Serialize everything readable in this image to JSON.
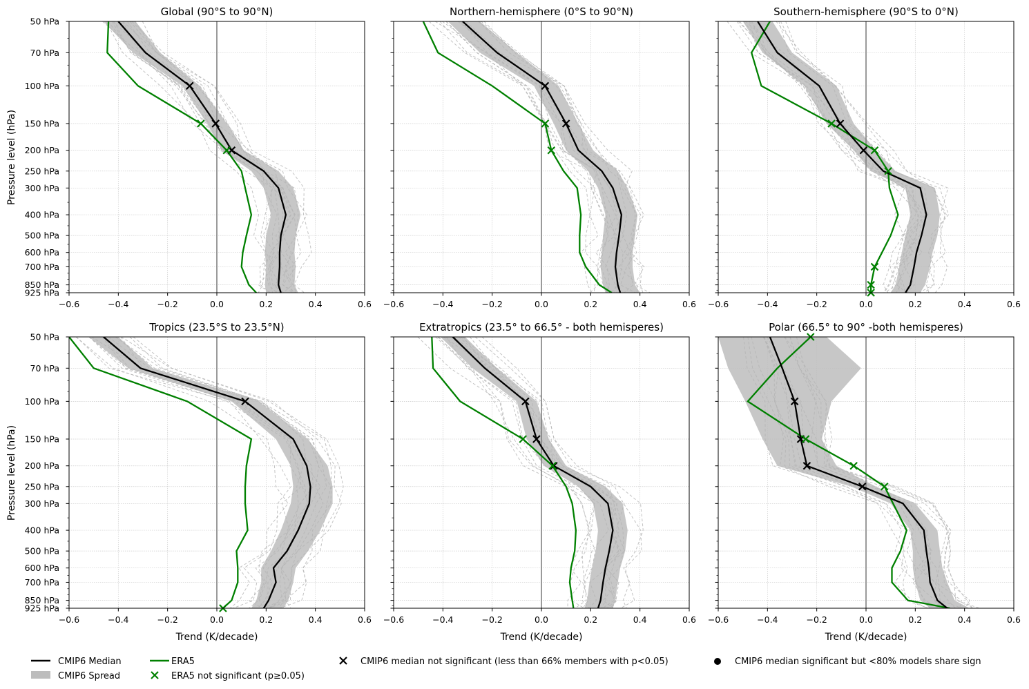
{
  "axis_labels": {
    "x": "Trend (K/decade)",
    "y": "Pressure level (hPa)"
  },
  "levels_hpa": [
    50,
    70,
    100,
    150,
    200,
    250,
    300,
    400,
    500,
    600,
    700,
    850,
    925
  ],
  "level_tick_labels": [
    "50 hPa",
    "70 hPa",
    "100 hPa",
    "150 hPa",
    "200 hPa",
    "250 hPa",
    "300 hPa",
    "400 hPa",
    "500 hPa",
    "600 hPa",
    "700 hPa",
    "850 hPa",
    "925 hPa"
  ],
  "x_ticks": [
    -0.6,
    -0.4,
    -0.2,
    0.0,
    0.2,
    0.4,
    0.6
  ],
  "x_tick_labels": [
    "−0.6",
    "−0.4",
    "−0.2",
    "0.0",
    "0.2",
    "0.4",
    "0.6"
  ],
  "colors": {
    "median": "#000000",
    "spread": "#bdbdbd",
    "era5": "#008000",
    "members": "#b4b4b4",
    "zero_line": "#808080",
    "grid": "#cccccc"
  },
  "legend": {
    "median": "CMIP6 Median",
    "spread": "CMIP6 Spread",
    "era5": "ERA5",
    "era5_ns": "ERA5 not significant (p≥0.05)",
    "median_ns": "CMIP6 median not significant (less than 66% members with p<0.05)",
    "median_sign": "CMIP6 median significant but <80% models share sign"
  },
  "chart_data": [
    {
      "type": "line",
      "title": "Global (90°S to 90°N)",
      "xlim": [
        -0.6,
        0.6
      ],
      "median": [
        -0.4,
        -0.29,
        -0.11,
        -0.005,
        0.06,
        0.19,
        0.25,
        0.28,
        0.26,
        0.255,
        0.255,
        0.25,
        0.26
      ],
      "spread_lo": [
        -0.46,
        -0.34,
        -0.14,
        -0.04,
        0.02,
        0.14,
        0.19,
        0.22,
        0.2,
        0.195,
        0.2,
        0.195,
        0.2
      ],
      "spread_hi": [
        -0.33,
        -0.23,
        -0.07,
        0.04,
        0.11,
        0.25,
        0.31,
        0.34,
        0.32,
        0.315,
        0.32,
        0.315,
        0.33
      ],
      "era5": [
        -0.44,
        -0.445,
        -0.32,
        -0.065,
        0.04,
        0.1,
        0.115,
        0.14,
        0.12,
        0.105,
        0.1,
        0.13,
        0.16
      ],
      "median_ns": [
        2,
        3,
        4
      ],
      "era5_ns": [
        3,
        4
      ]
    },
    {
      "type": "line",
      "title": "Northern-hemisphere (0°S to 90°N)",
      "xlim": [
        -0.6,
        0.6
      ],
      "median": [
        -0.32,
        -0.18,
        0.015,
        0.1,
        0.15,
        0.245,
        0.29,
        0.325,
        0.315,
        0.305,
        0.3,
        0.31,
        0.32
      ],
      "spread_lo": [
        -0.38,
        -0.25,
        -0.03,
        0.05,
        0.1,
        0.19,
        0.23,
        0.26,
        0.25,
        0.245,
        0.24,
        0.25,
        0.26
      ],
      "spread_hi": [
        -0.25,
        -0.1,
        0.07,
        0.15,
        0.21,
        0.31,
        0.35,
        0.39,
        0.38,
        0.37,
        0.37,
        0.38,
        0.4
      ],
      "era5": [
        -0.48,
        -0.42,
        -0.2,
        0.015,
        0.04,
        0.09,
        0.145,
        0.16,
        0.155,
        0.155,
        0.18,
        0.235,
        0.285
      ],
      "median_ns": [
        2,
        3
      ],
      "era5_ns": [
        3,
        4
      ]
    },
    {
      "type": "line",
      "title": "Southern-hemisphere (90°S to 0°N)",
      "xlim": [
        -0.6,
        0.6
      ],
      "median": [
        -0.44,
        -0.36,
        -0.19,
        -0.105,
        -0.01,
        0.07,
        0.22,
        0.245,
        0.225,
        0.205,
        0.195,
        0.18,
        0.16
      ],
      "spread_lo": [
        -0.5,
        -0.42,
        -0.25,
        -0.16,
        -0.05,
        0.02,
        0.16,
        0.18,
        0.16,
        0.145,
        0.135,
        0.12,
        0.1
      ],
      "spread_hi": [
        -0.38,
        -0.3,
        -0.12,
        -0.05,
        0.04,
        0.12,
        0.28,
        0.3,
        0.29,
        0.27,
        0.26,
        0.24,
        0.22
      ],
      "era5": [
        -0.39,
        -0.465,
        -0.425,
        -0.14,
        0.035,
        0.09,
        0.095,
        0.13,
        0.1,
        0.065,
        0.035,
        0.02,
        0.02
      ],
      "median_ns": [
        3,
        4
      ],
      "era5_ns": [
        3,
        4,
        5,
        10,
        11,
        12
      ]
    },
    {
      "type": "line",
      "title": "Tropics (23.5°S to 23.5°N)",
      "xlim": [
        -0.6,
        0.6
      ],
      "median": [
        -0.46,
        -0.31,
        0.115,
        0.31,
        0.365,
        0.38,
        0.375,
        0.33,
        0.285,
        0.23,
        0.24,
        0.21,
        0.19
      ],
      "spread_lo": [
        -0.52,
        -0.36,
        0.06,
        0.24,
        0.3,
        0.31,
        0.3,
        0.26,
        0.22,
        0.18,
        0.18,
        0.16,
        0.14
      ],
      "spread_hi": [
        -0.4,
        -0.26,
        0.17,
        0.37,
        0.45,
        0.47,
        0.47,
        0.42,
        0.37,
        0.32,
        0.31,
        0.29,
        0.27
      ],
      "era5": [
        -0.6,
        -0.5,
        -0.12,
        0.14,
        0.12,
        0.115,
        0.115,
        0.125,
        0.08,
        0.085,
        0.085,
        0.06,
        0.025
      ],
      "median_ns": [
        2
      ],
      "era5_ns": [
        12
      ]
    },
    {
      "type": "line",
      "title": "Extratropics (23.5° to 66.5° - both hemisperes)",
      "xlim": [
        -0.6,
        0.6
      ],
      "median": [
        -0.36,
        -0.23,
        -0.065,
        -0.02,
        0.05,
        0.2,
        0.27,
        0.29,
        0.275,
        0.26,
        0.25,
        0.24,
        0.23
      ],
      "spread_lo": [
        -0.41,
        -0.28,
        -0.1,
        -0.06,
        0.01,
        0.15,
        0.21,
        0.23,
        0.22,
        0.205,
        0.195,
        0.185,
        0.175
      ],
      "spread_hi": [
        -0.31,
        -0.18,
        -0.02,
        0.03,
        0.1,
        0.26,
        0.33,
        0.35,
        0.34,
        0.32,
        0.31,
        0.3,
        0.29
      ],
      "era5": [
        -0.445,
        -0.44,
        -0.33,
        -0.075,
        0.045,
        0.1,
        0.125,
        0.14,
        0.135,
        0.12,
        0.115,
        0.125,
        0.13
      ],
      "median_ns": [
        2,
        3,
        4
      ],
      "era5_ns": [
        3,
        4
      ]
    },
    {
      "type": "line",
      "title": "Polar (66.5° to 90° -both hemisperes)",
      "xlim": [
        -0.6,
        0.6
      ],
      "median": [
        -0.39,
        -0.34,
        -0.29,
        -0.265,
        -0.24,
        -0.015,
        0.15,
        0.235,
        0.245,
        0.255,
        0.26,
        0.29,
        0.33
      ],
      "spread_lo": [
        -0.6,
        -0.56,
        -0.49,
        -0.42,
        -0.36,
        -0.06,
        0.1,
        0.18,
        0.19,
        0.19,
        0.2,
        0.22,
        0.26
      ],
      "spread_hi": [
        -0.16,
        -0.02,
        -0.14,
        -0.18,
        -0.12,
        0.04,
        0.2,
        0.29,
        0.3,
        0.31,
        0.33,
        0.36,
        0.42
      ],
      "era5": [
        -0.225,
        -0.36,
        -0.48,
        -0.245,
        -0.05,
        0.075,
        0.11,
        0.165,
        0.14,
        0.105,
        0.105,
        0.17,
        0.34
      ],
      "median_ns": [
        2,
        3,
        4,
        5
      ],
      "era5_ns": [
        0,
        3,
        4,
        5
      ]
    }
  ]
}
